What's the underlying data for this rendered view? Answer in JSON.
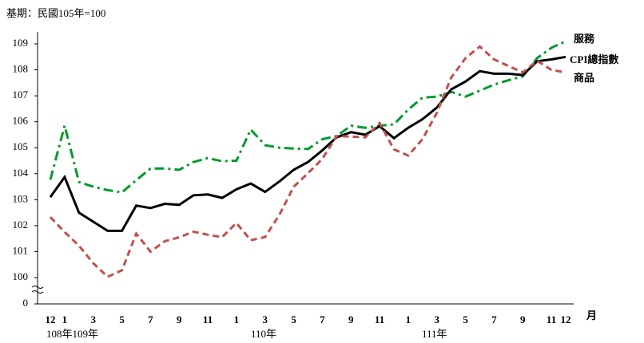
{
  "chart_data": {
    "type": "line",
    "subtitle": "基期：民國105年=100",
    "x_unit": "月",
    "year_labels": [
      "108年109年",
      "110年",
      "111年"
    ],
    "categories": [
      "12",
      "1",
      null,
      "3",
      null,
      "5",
      null,
      "7",
      null,
      "9",
      null,
      "11",
      null,
      "1",
      null,
      "3",
      null,
      "5",
      null,
      "7",
      null,
      "9",
      null,
      "11",
      null,
      "1",
      null,
      "3",
      null,
      "5",
      null,
      "7",
      null,
      "9",
      null,
      "11",
      "12"
    ],
    "ylim": [
      0,
      109
    ],
    "axis_break": [
      0,
      100
    ],
    "yticks": [
      0,
      100,
      101,
      102,
      103,
      104,
      105,
      106,
      107,
      108,
      109
    ],
    "series": [
      {
        "name": "服務",
        "color": "#009a2e",
        "style": "dashdot",
        "values": [
          103.77,
          105.85,
          103.68,
          103.5,
          103.37,
          103.28,
          103.75,
          104.2,
          104.2,
          104.15,
          104.45,
          104.6,
          104.48,
          104.5,
          105.7,
          105.1,
          105.0,
          104.97,
          104.95,
          105.33,
          105.45,
          105.85,
          105.77,
          105.85,
          105.9,
          106.47,
          106.93,
          106.97,
          107.15,
          106.97,
          107.2,
          107.43,
          107.6,
          107.75,
          108.45,
          108.85,
          109.1
        ]
      },
      {
        "name": "CPI總指數",
        "color": "#000000",
        "style": "solid",
        "values": [
          103.1,
          103.87,
          102.5,
          102.15,
          101.8,
          101.8,
          102.77,
          102.68,
          102.84,
          102.8,
          103.17,
          103.2,
          103.07,
          103.4,
          103.62,
          103.3,
          103.7,
          104.15,
          104.45,
          104.9,
          105.4,
          105.6,
          105.5,
          105.83,
          105.37,
          105.77,
          106.1,
          106.55,
          107.25,
          107.55,
          107.95,
          107.85,
          107.85,
          107.8,
          108.33,
          108.4,
          108.5
        ]
      },
      {
        "name": "商品",
        "color": "#c0504d",
        "style": "dashed",
        "values": [
          102.33,
          101.75,
          101.23,
          100.55,
          100.03,
          100.28,
          101.69,
          101.0,
          101.4,
          101.55,
          101.77,
          101.65,
          101.56,
          102.1,
          101.44,
          101.56,
          102.42,
          103.5,
          104.02,
          104.57,
          105.45,
          105.43,
          105.4,
          105.95,
          104.94,
          104.7,
          105.33,
          106.35,
          107.7,
          108.45,
          108.9,
          108.4,
          108.15,
          107.9,
          108.35,
          108.0,
          107.9
        ]
      }
    ]
  }
}
